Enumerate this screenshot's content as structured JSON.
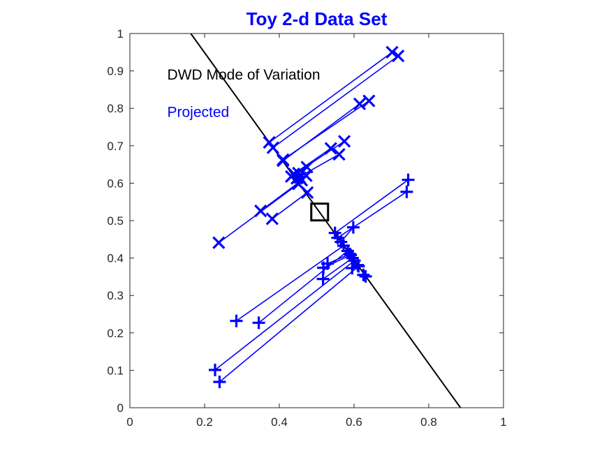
{
  "chart_data": {
    "type": "scatter",
    "title": "Toy 2-d Data Set",
    "xlabel": "",
    "ylabel": "",
    "xlim": [
      0,
      1
    ],
    "ylim": [
      0,
      1
    ],
    "xticks": [
      "0",
      "0.2",
      "0.4",
      "0.6",
      "0.8",
      "1"
    ],
    "yticks": [
      "0",
      "0.1",
      "0.2",
      "0.3",
      "0.4",
      "0.5",
      "0.6",
      "0.7",
      "0.8",
      "0.9",
      "1"
    ],
    "xtick_values": [
      0,
      0.2,
      0.4,
      0.6,
      0.8,
      1
    ],
    "ytick_values": [
      0,
      0.1,
      0.2,
      0.3,
      0.4,
      0.5,
      0.6,
      0.7,
      0.8,
      0.9,
      1
    ],
    "grid": false,
    "box": true,
    "annotations": [
      {
        "text": "DWD Mode of Variation",
        "x": 0.1,
        "y": 0.89,
        "color": "#000000"
      },
      {
        "text": "Projected",
        "x": 0.1,
        "y": 0.79,
        "color": "#0000FF"
      }
    ],
    "direction_line": {
      "points": [
        [
          0.163,
          1.0
        ],
        [
          0.885,
          0.0
        ]
      ],
      "color": "#000000"
    },
    "center": {
      "x": 0.508,
      "y": 0.523,
      "marker": "square",
      "color": "#000000"
    },
    "series": [
      {
        "marker": "x",
        "color": "#0000FF",
        "pairs": [
          {
            "data": [
              0.702,
              0.95
            ],
            "proj": [
              0.373,
              0.709
            ]
          },
          {
            "data": [
              0.718,
              0.94
            ],
            "proj": [
              0.383,
              0.695
            ]
          },
          {
            "data": [
              0.64,
              0.82
            ],
            "proj": [
              0.41,
              0.663
            ]
          },
          {
            "data": [
              0.615,
              0.812
            ],
            "proj": [
              0.41,
              0.66
            ]
          },
          {
            "data": [
              0.574,
              0.712
            ],
            "proj": [
              0.432,
              0.618
            ]
          },
          {
            "data": [
              0.538,
              0.693
            ],
            "proj": [
              0.439,
              0.625
            ]
          },
          {
            "data": [
              0.56,
              0.677
            ],
            "proj": [
              0.447,
              0.613
            ]
          },
          {
            "data": [
              0.474,
              0.643
            ],
            "proj": [
              0.451,
              0.627
            ]
          },
          {
            "data": [
              0.472,
              0.62
            ],
            "proj": [
              0.455,
              0.615
            ]
          },
          {
            "data": [
              0.238,
              0.441
            ],
            "proj": [
              0.451,
              0.598
            ]
          },
          {
            "data": [
              0.35,
              0.526
            ],
            "proj": [
              0.46,
              0.608
            ]
          },
          {
            "data": [
              0.381,
              0.505
            ],
            "proj": [
              0.475,
              0.575
            ]
          }
        ]
      },
      {
        "marker": "+",
        "color": "#0000FF",
        "pairs": [
          {
            "data": [
              0.745,
              0.609
            ],
            "proj": [
              0.549,
              0.467
            ]
          },
          {
            "data": [
              0.741,
              0.577
            ],
            "proj": [
              0.556,
              0.454
            ]
          },
          {
            "data": [
              0.598,
              0.482
            ],
            "proj": [
              0.565,
              0.443
            ]
          },
          {
            "data": [
              0.285,
              0.232
            ],
            "proj": [
              0.572,
              0.433
            ]
          },
          {
            "data": [
              0.345,
              0.227
            ],
            "proj": [
              0.583,
              0.419
            ]
          },
          {
            "data": [
              0.529,
              0.385
            ],
            "proj": [
              0.589,
              0.411
            ]
          },
          {
            "data": [
              0.518,
              0.374
            ],
            "proj": [
              0.591,
              0.408
            ]
          },
          {
            "data": [
              0.517,
              0.344
            ],
            "proj": [
              0.596,
              0.4
            ]
          },
          {
            "data": [
              0.228,
              0.101
            ],
            "proj": [
              0.601,
              0.393
            ]
          },
          {
            "data": [
              0.24,
              0.069
            ],
            "proj": [
              0.612,
              0.378
            ]
          },
          {
            "data": [
              0.595,
              0.373
            ],
            "proj": [
              0.61,
              0.381
            ]
          },
          {
            "data": [
              0.631,
              0.351
            ],
            "proj": [
              0.625,
              0.355
            ]
          }
        ]
      }
    ]
  }
}
